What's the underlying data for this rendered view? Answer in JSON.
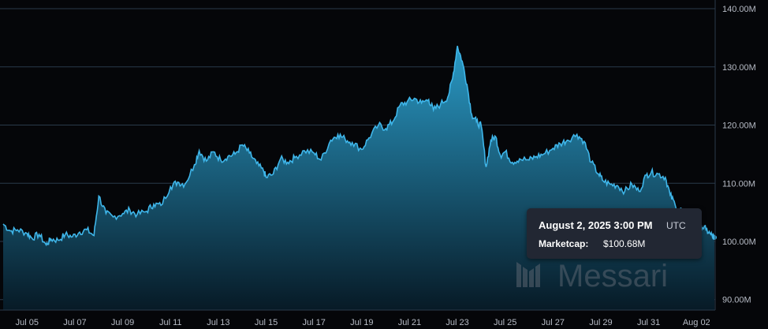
{
  "chart_data": {
    "type": "area",
    "y_unit_suffix": "M",
    "y_tick_labels": [
      "140.00M",
      "130.00M",
      "120.00M",
      "110.00M",
      "100.00M",
      "90.00M"
    ],
    "y_tick_values": [
      140,
      130,
      120,
      110,
      100,
      90
    ],
    "x_tick_labels": [
      "Jul 05",
      "Jul 07",
      "Jul 09",
      "Jul 11",
      "Jul 13",
      "Jul 15",
      "Jul 17",
      "Jul 19",
      "Jul 21",
      "Jul 23",
      "Jul 25",
      "Jul 27",
      "Jul 29",
      "Jul 31",
      "Aug 02"
    ],
    "x_tick_days": [
      1,
      3,
      5,
      7,
      9,
      11,
      13,
      15,
      17,
      19,
      21,
      23,
      25,
      27,
      29
    ],
    "xlim_days": [
      0.0,
      29.75
    ],
    "ylim": [
      88.2,
      141.5
    ],
    "grid": true,
    "series": [
      {
        "values": [
          [
            0.0,
            103.0
          ],
          [
            0.3,
            101.8
          ],
          [
            0.6,
            102.0
          ],
          [
            1.0,
            101.4
          ],
          [
            1.2,
            100.6
          ],
          [
            1.5,
            101.2
          ],
          [
            1.8,
            99.4
          ],
          [
            2.0,
            100.4
          ],
          [
            2.3,
            100.2
          ],
          [
            2.6,
            101.2
          ],
          [
            2.9,
            100.8
          ],
          [
            3.2,
            101.6
          ],
          [
            3.5,
            102.0
          ],
          [
            3.8,
            101.0
          ],
          [
            4.0,
            107.8
          ],
          [
            4.3,
            104.8
          ],
          [
            4.6,
            104.2
          ],
          [
            5.0,
            104.8
          ],
          [
            5.3,
            105.4
          ],
          [
            5.6,
            104.6
          ],
          [
            6.0,
            105.2
          ],
          [
            6.3,
            106.4
          ],
          [
            6.6,
            106.2
          ],
          [
            7.0,
            109.4
          ],
          [
            7.3,
            110.2
          ],
          [
            7.6,
            109.8
          ],
          [
            8.0,
            113.2
          ],
          [
            8.2,
            115.6
          ],
          [
            8.5,
            113.8
          ],
          [
            8.8,
            115.4
          ],
          [
            9.1,
            114.0
          ],
          [
            9.4,
            114.6
          ],
          [
            9.7,
            115.0
          ],
          [
            10.0,
            116.6
          ],
          [
            10.3,
            115.2
          ],
          [
            10.6,
            113.4
          ],
          [
            10.9,
            112.0
          ],
          [
            11.0,
            111.0
          ],
          [
            11.3,
            111.6
          ],
          [
            11.6,
            114.2
          ],
          [
            11.9,
            113.6
          ],
          [
            12.2,
            114.4
          ],
          [
            12.6,
            115.6
          ],
          [
            13.0,
            115.2
          ],
          [
            13.3,
            114.0
          ],
          [
            13.7,
            117.4
          ],
          [
            14.0,
            118.4
          ],
          [
            14.3,
            117.6
          ],
          [
            14.6,
            117.0
          ],
          [
            15.0,
            115.8
          ],
          [
            15.3,
            117.8
          ],
          [
            15.7,
            120.0
          ],
          [
            16.0,
            119.4
          ],
          [
            16.3,
            120.6
          ],
          [
            16.6,
            123.4
          ],
          [
            16.9,
            124.0
          ],
          [
            17.2,
            124.6
          ],
          [
            17.5,
            123.8
          ],
          [
            17.8,
            124.4
          ],
          [
            18.0,
            122.6
          ],
          [
            18.3,
            123.6
          ],
          [
            18.6,
            124.8
          ],
          [
            18.8,
            128.0
          ],
          [
            19.0,
            133.6
          ],
          [
            19.2,
            131.0
          ],
          [
            19.4,
            127.0
          ],
          [
            19.6,
            121.8
          ],
          [
            19.8,
            120.6
          ],
          [
            20.0,
            119.8
          ],
          [
            20.2,
            112.8
          ],
          [
            20.4,
            117.4
          ],
          [
            20.6,
            118.0
          ],
          [
            20.8,
            114.8
          ],
          [
            21.0,
            115.4
          ],
          [
            21.3,
            113.6
          ],
          [
            21.6,
            114.2
          ],
          [
            22.0,
            114.0
          ],
          [
            22.3,
            114.6
          ],
          [
            22.6,
            115.0
          ],
          [
            23.0,
            116.0
          ],
          [
            23.3,
            116.8
          ],
          [
            23.6,
            117.4
          ],
          [
            24.0,
            118.4
          ],
          [
            24.3,
            117.2
          ],
          [
            24.6,
            113.6
          ],
          [
            24.9,
            111.6
          ],
          [
            25.1,
            110.4
          ],
          [
            25.4,
            109.8
          ],
          [
            25.7,
            109.6
          ],
          [
            26.0,
            108.6
          ],
          [
            26.3,
            109.8
          ],
          [
            26.6,
            108.6
          ],
          [
            26.9,
            111.4
          ],
          [
            27.1,
            111.8
          ],
          [
            27.4,
            111.6
          ],
          [
            27.7,
            111.0
          ],
          [
            27.9,
            108.0
          ],
          [
            28.1,
            106.4
          ],
          [
            28.4,
            105.2
          ],
          [
            28.7,
            104.6
          ],
          [
            29.0,
            104.8
          ],
          [
            29.2,
            102.8
          ],
          [
            29.4,
            102.0
          ],
          [
            29.6,
            101.2
          ],
          [
            29.75,
            100.68
          ]
        ]
      }
    ],
    "last_point_day": 29.75,
    "last_point_value": 100.68,
    "line_color": "#3fb6ea",
    "area_top_color": "#2a9ac6",
    "area_bottom_color": "#071a26",
    "tooltip": {
      "date": "August 2, 2025 3:00 PM",
      "timezone": "UTC",
      "label": "Marketcap:",
      "value": "$100.68M"
    },
    "watermark": "Messari"
  }
}
